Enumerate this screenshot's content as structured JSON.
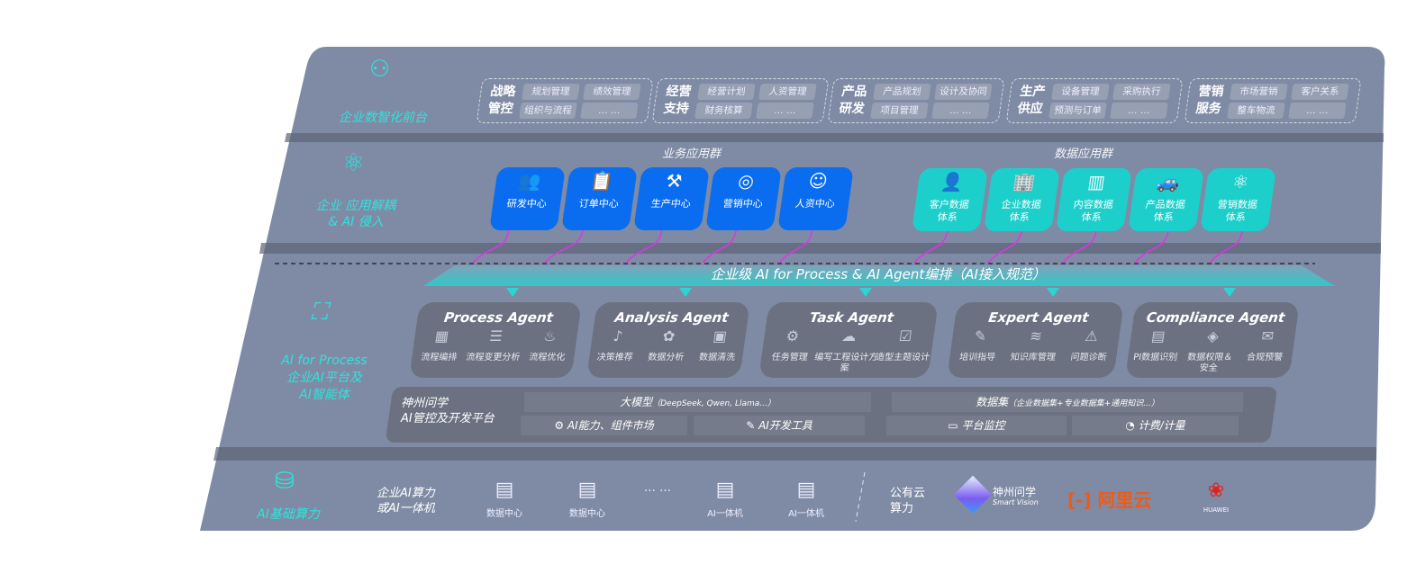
{
  "layers": {
    "front": "企业数智化前台",
    "apps": "企业 应用解耦\n& AI 侵入",
    "ai": {
      "line1": "AI for Process",
      "line2": "企业AI平台及",
      "line3": "AI智能体"
    },
    "infra": "AI基础算力"
  },
  "front_groups": [
    {
      "title": "战略\n管控",
      "items": [
        "规划管理",
        "绩效管理",
        "组织与流程",
        "… …"
      ]
    },
    {
      "title": "经营\n支持",
      "items": [
        "经营计划",
        "人资管理",
        "财务核算",
        "… …"
      ]
    },
    {
      "title": "产品\n研发",
      "items": [
        "产品规划",
        "设计及协同",
        "项目管理",
        "… …"
      ]
    },
    {
      "title": "生产\n供应",
      "items": [
        "设备管理",
        "采购执行",
        "预测与订单",
        "… …"
      ]
    },
    {
      "title": "营销\n服务",
      "items": [
        "市场营销",
        "客户关系",
        "整车物流",
        "… …"
      ]
    }
  ],
  "business_apps": {
    "title": "业务应用群",
    "items": [
      {
        "label": "研发中心",
        "icon": "team-icon"
      },
      {
        "label": "订单中心",
        "icon": "clipboard-icon"
      },
      {
        "label": "生产中心",
        "icon": "factory-icon"
      },
      {
        "label": "营销中心",
        "icon": "target-icon"
      },
      {
        "label": "人资中心",
        "icon": "person-icon"
      }
    ]
  },
  "data_apps": {
    "title": "数据应用群",
    "items": [
      {
        "label": "客户数据\n体系",
        "icon": "user-icon"
      },
      {
        "label": "企业数据\n体系",
        "icon": "building-icon"
      },
      {
        "label": "内容数据\n体系",
        "icon": "books-icon"
      },
      {
        "label": "产品数据\n体系",
        "icon": "car-icon"
      },
      {
        "label": "营销数据\n体系",
        "icon": "atom-icon"
      }
    ]
  },
  "banner": "企业级 AI for Process & AI Agent编排（AI接入规范）",
  "agents": [
    {
      "name": "Process Agent",
      "features": [
        "流程编排",
        "流程变更分析",
        "流程优化"
      ]
    },
    {
      "name": "Analysis Agent",
      "features": [
        "决策推荐",
        "数据分析",
        "数据清洗"
      ]
    },
    {
      "name": "Task Agent",
      "features": [
        "任务管理",
        "编写工程设计方案",
        "造型主题设计"
      ]
    },
    {
      "name": "Expert Agent",
      "features": [
        "培训指导",
        "知识库管理",
        "问题诊断"
      ]
    },
    {
      "name": "Compliance Agent",
      "features": [
        "PI数据识别",
        "数据权限＆\n安全",
        "合规预警"
      ]
    }
  ],
  "platform": {
    "name": "神州问学\nAI管控及开发平台",
    "llm": "大模型",
    "llm_note": "（DeepSeek, Qwen, Llama...）",
    "dataset": "数据集",
    "dataset_note": "（企业数据集+专业数据集+通用知识...）",
    "tools": [
      "AI能力、组件市场",
      "AI开发工具",
      "平台监控",
      "计费/计量"
    ]
  },
  "infra": {
    "private": "企业AI算力\n或AI一体机",
    "nodes": [
      "数据中心",
      "数据中心",
      "… …",
      "AI一体机",
      "AI一体机"
    ],
    "public": "公有云\n算力",
    "vendors": [
      {
        "name": "神州问学",
        "sub": "Smart Vision"
      },
      {
        "name": "阿里云"
      },
      {
        "name": "HUAWEI"
      }
    ]
  },
  "colors": {
    "panel": "#7f8ba5",
    "blue": "#0a6df0",
    "teal": "#1ccfcb",
    "accent": "#2fe3dc",
    "magenta": "#e033e6"
  }
}
